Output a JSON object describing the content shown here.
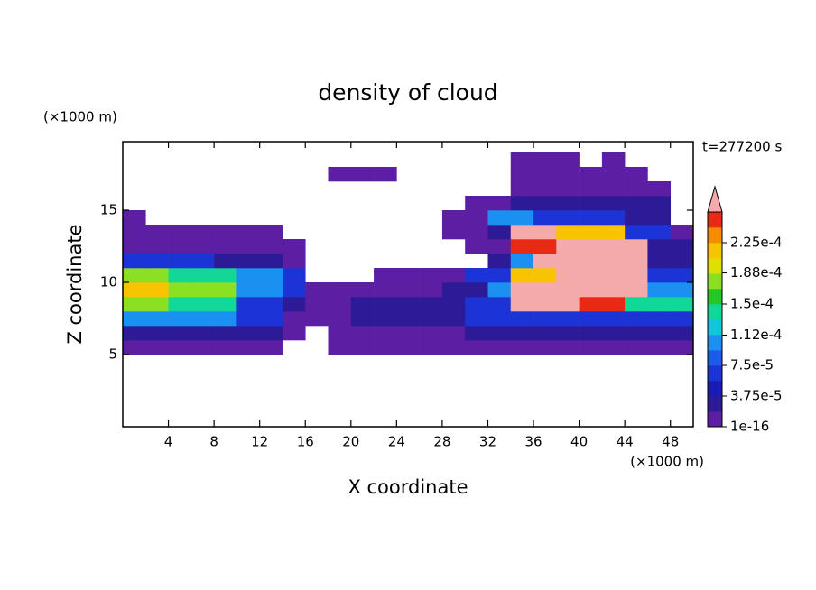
{
  "chart_data": {
    "type": "contour",
    "title": "density of cloud",
    "x_label": "X coordinate",
    "y_label": "Z coordinate",
    "x_unit": "(×1000 m)",
    "y_unit": "(×1000 m)",
    "annotation": "t=277200 s",
    "xlim": [
      0,
      50
    ],
    "ylim": [
      0,
      19.75
    ],
    "xticks": [
      4,
      8,
      12,
      16,
      20,
      24,
      28,
      32,
      36,
      40,
      44,
      48
    ],
    "yticks": [
      5,
      10,
      15
    ],
    "x": [
      1,
      3,
      5,
      7,
      9,
      11,
      13,
      15,
      17,
      19,
      21,
      23,
      25,
      27,
      29,
      31,
      33,
      35,
      37,
      39,
      41,
      43,
      45,
      47,
      49
    ],
    "y": [
      5.5,
      6.5,
      7.5,
      8.5,
      9.5,
      10.5,
      11.5,
      12.5,
      13.5,
      14.5,
      15.5,
      16.5,
      17.5,
      18.5
    ],
    "z": [
      [
        5e-06,
        5e-06,
        5e-06,
        5e-06,
        5e-06,
        5e-06,
        5e-06,
        null,
        null,
        5e-06,
        5e-06,
        5e-06,
        5e-06,
        5e-06,
        5e-06,
        5e-06,
        5e-06,
        5e-06,
        5e-06,
        5e-06,
        5e-06,
        5e-06,
        5e-06,
        5e-06,
        5e-06
      ],
      [
        3e-05,
        3e-05,
        3e-05,
        3e-05,
        3e-05,
        3e-05,
        3e-05,
        5e-06,
        null,
        5e-06,
        5e-06,
        5e-06,
        5e-06,
        5e-06,
        5e-06,
        3e-05,
        3e-05,
        3e-05,
        3e-05,
        3e-05,
        3e-05,
        3e-05,
        3e-05,
        3e-05,
        3e-05
      ],
      [
        0.0001,
        0.0001,
        0.0001,
        0.0001,
        0.0001,
        6e-05,
        6e-05,
        5e-06,
        5e-06,
        5e-06,
        3e-05,
        3e-05,
        3e-05,
        3e-05,
        3e-05,
        6e-05,
        6e-05,
        6e-05,
        6e-05,
        6e-05,
        6e-05,
        6e-05,
        6e-05,
        6e-05,
        6e-05
      ],
      [
        0.00017,
        0.00017,
        0.00014,
        0.00014,
        0.00014,
        6e-05,
        6e-05,
        3e-05,
        5e-06,
        5e-06,
        3e-05,
        3e-05,
        3e-05,
        3e-05,
        3e-05,
        6e-05,
        6e-05,
        0.0003,
        0.0003,
        0.0003,
        0.00025,
        0.00025,
        0.00014,
        0.00014,
        0.00014
      ],
      [
        0.00021,
        0.00021,
        0.00017,
        0.00017,
        0.00017,
        0.0001,
        0.0001,
        6e-05,
        5e-06,
        5e-06,
        5e-06,
        5e-06,
        5e-06,
        5e-06,
        3e-05,
        3e-05,
        0.0001,
        0.0003,
        0.0003,
        0.0003,
        0.0003,
        0.0003,
        0.0003,
        0.0001,
        0.0001
      ],
      [
        0.00017,
        0.00017,
        0.00014,
        0.00014,
        0.00014,
        0.0001,
        0.0001,
        6e-05,
        null,
        null,
        null,
        5e-06,
        5e-06,
        5e-06,
        5e-06,
        6e-05,
        6e-05,
        0.00021,
        0.00021,
        0.0003,
        0.0003,
        0.0003,
        0.0003,
        6e-05,
        6e-05
      ],
      [
        6e-05,
        6e-05,
        6e-05,
        6e-05,
        3e-05,
        3e-05,
        3e-05,
        5e-06,
        null,
        null,
        null,
        null,
        null,
        null,
        null,
        null,
        3e-05,
        0.0001,
        0.0003,
        0.0003,
        0.0003,
        0.0003,
        0.0003,
        3e-05,
        3e-05
      ],
      [
        5e-06,
        5e-06,
        5e-06,
        5e-06,
        5e-06,
        5e-06,
        5e-06,
        5e-06,
        null,
        null,
        null,
        null,
        null,
        null,
        null,
        5e-06,
        5e-06,
        0.00025,
        0.00025,
        0.0003,
        0.0003,
        0.0003,
        0.0003,
        3e-05,
        3e-05
      ],
      [
        5e-06,
        5e-06,
        5e-06,
        5e-06,
        5e-06,
        5e-06,
        5e-06,
        null,
        null,
        null,
        null,
        null,
        null,
        null,
        5e-06,
        5e-06,
        3e-05,
        0.0003,
        0.0003,
        0.00021,
        0.00021,
        0.00021,
        6e-05,
        6e-05,
        5e-06
      ],
      [
        5e-06,
        null,
        null,
        null,
        null,
        null,
        null,
        null,
        null,
        null,
        null,
        null,
        null,
        null,
        5e-06,
        5e-06,
        0.0001,
        0.0001,
        6e-05,
        6e-05,
        6e-05,
        6e-05,
        3e-05,
        3e-05,
        null
      ],
      [
        null,
        null,
        null,
        null,
        null,
        null,
        null,
        null,
        null,
        null,
        null,
        null,
        null,
        null,
        null,
        5e-06,
        5e-06,
        3e-05,
        3e-05,
        3e-05,
        3e-05,
        3e-05,
        3e-05,
        3e-05,
        null
      ],
      [
        null,
        null,
        null,
        null,
        null,
        null,
        null,
        null,
        null,
        null,
        null,
        null,
        null,
        null,
        null,
        null,
        null,
        5e-06,
        5e-06,
        5e-06,
        5e-06,
        5e-06,
        5e-06,
        5e-06,
        null
      ],
      [
        null,
        null,
        null,
        null,
        null,
        null,
        null,
        null,
        null,
        5e-06,
        5e-06,
        5e-06,
        null,
        null,
        null,
        null,
        null,
        5e-06,
        5e-06,
        5e-06,
        5e-06,
        5e-06,
        5e-06,
        null,
        null
      ],
      [
        null,
        null,
        null,
        null,
        null,
        null,
        null,
        null,
        null,
        null,
        null,
        null,
        null,
        null,
        null,
        null,
        null,
        5e-06,
        5e-06,
        5e-06,
        null,
        5e-06,
        null,
        null,
        null
      ]
    ],
    "clim": [
      1e-16,
      0.0002625
    ],
    "colors": [
      "#5c1fa3",
      "#2c1a96",
      "#1a1ab4",
      "#1c34d6",
      "#1a5ce8",
      "#1a90f0",
      "#12c6dc",
      "#10d896",
      "#22c824",
      "#8ce024",
      "#e0e000",
      "#f8c400",
      "#f88c00",
      "#e82a14"
    ],
    "over_color": "#f4aaaa",
    "cticks": [
      1e-16,
      {
        "value": 3.75e-05,
        "label": "3.75e-5"
      },
      {
        "value": 7.5e-05,
        "label": "7.5e-5"
      },
      {
        "value": 0.000112,
        "label": "1.12e-4"
      },
      {
        "value": 0.00015,
        "label": "1.5e-4"
      },
      {
        "value": 0.000188,
        "label": "1.88e-4"
      },
      {
        "value": 0.000225,
        "label": "2.25e-4"
      }
    ]
  }
}
